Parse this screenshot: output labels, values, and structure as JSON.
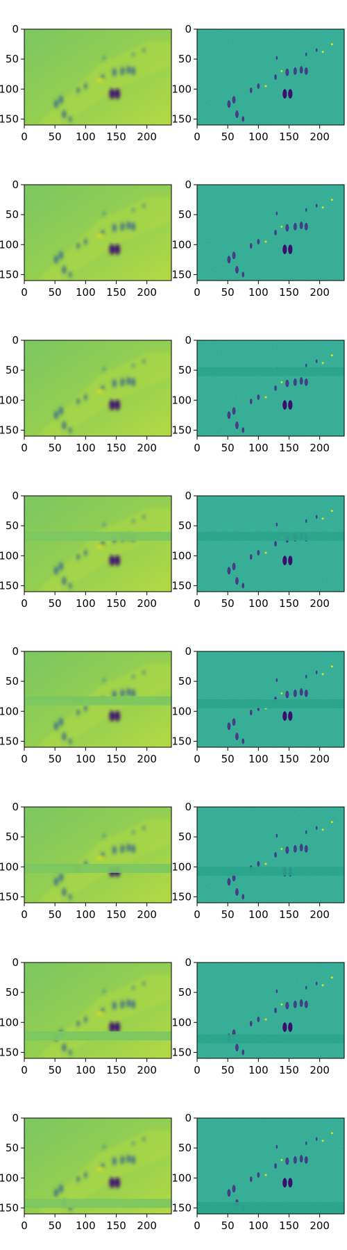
{
  "chart_data": {
    "type": "heatmap",
    "grid": false,
    "layout": "8 rows × 2 columns of image panels (imshow-style)",
    "colormap": "viridis",
    "colors": {
      "left_bg": "#7cc761",
      "left_bg_light": "#b2d944",
      "right_bg": "#2aa58c",
      "dark": "#3b0f70",
      "mid_dark": "#2a5d9a",
      "highlight": "#d8e219"
    },
    "xticks": [
      0,
      50,
      100,
      150,
      200
    ],
    "yticks": [
      0,
      50,
      100,
      150
    ],
    "xlim": [
      0,
      240
    ],
    "ylim": [
      160,
      0
    ],
    "panels": [
      {
        "row": 1,
        "col": 1,
        "kind": "smooth-feature",
        "band": null
      },
      {
        "row": 1,
        "col": 2,
        "kind": "edge-detail",
        "band": null
      },
      {
        "row": 2,
        "col": 1,
        "kind": "smooth-feature",
        "band": null
      },
      {
        "row": 2,
        "col": 2,
        "kind": "edge-detail",
        "band": null
      },
      {
        "row": 3,
        "col": 1,
        "kind": "smooth-feature",
        "band": null
      },
      {
        "row": 3,
        "col": 2,
        "kind": "edge-detail",
        "band": [
          45,
          60
        ]
      },
      {
        "row": 4,
        "col": 1,
        "kind": "smooth-feature",
        "band": [
          60,
          75
        ]
      },
      {
        "row": 4,
        "col": 2,
        "kind": "edge-detail",
        "band": [
          60,
          75
        ]
      },
      {
        "row": 5,
        "col": 1,
        "kind": "smooth-feature",
        "band": [
          75,
          90
        ]
      },
      {
        "row": 5,
        "col": 2,
        "kind": "edge-detail",
        "band": [
          80,
          95
        ]
      },
      {
        "row": 6,
        "col": 1,
        "kind": "smooth-feature",
        "band": [
          95,
          110
        ]
      },
      {
        "row": 6,
        "col": 2,
        "kind": "edge-detail",
        "band": [
          100,
          115
        ]
      },
      {
        "row": 7,
        "col": 1,
        "kind": "smooth-feature",
        "band": [
          115,
          130
        ]
      },
      {
        "row": 7,
        "col": 2,
        "kind": "edge-detail",
        "band": [
          120,
          135
        ]
      },
      {
        "row": 8,
        "col": 1,
        "kind": "smooth-feature",
        "band": [
          135,
          150
        ]
      },
      {
        "row": 8,
        "col": 2,
        "kind": "edge-detail",
        "band": [
          140,
          160
        ]
      }
    ],
    "blobs": [
      {
        "x": 143,
        "y": 108,
        "r": 5,
        "tone": "dark"
      },
      {
        "x": 152,
        "y": 108,
        "r": 5,
        "tone": "dark"
      },
      {
        "x": 160,
        "y": 70,
        "r": 4,
        "tone": "mid"
      },
      {
        "x": 170,
        "y": 68,
        "r": 4,
        "tone": "mid"
      },
      {
        "x": 178,
        "y": 70,
        "r": 4,
        "tone": "mid"
      },
      {
        "x": 147,
        "y": 72,
        "r": 4,
        "tone": "mid"
      },
      {
        "x": 128,
        "y": 80,
        "r": 3,
        "tone": "mid"
      },
      {
        "x": 60,
        "y": 118,
        "r": 4,
        "tone": "mid"
      },
      {
        "x": 52,
        "y": 125,
        "r": 4,
        "tone": "mid"
      },
      {
        "x": 65,
        "y": 142,
        "r": 4,
        "tone": "mid"
      },
      {
        "x": 75,
        "y": 150,
        "r": 3,
        "tone": "mid"
      },
      {
        "x": 88,
        "y": 102,
        "r": 3,
        "tone": "mid"
      },
      {
        "x": 100,
        "y": 95,
        "r": 3,
        "tone": "mid"
      },
      {
        "x": 130,
        "y": 48,
        "r": 2,
        "tone": "mid"
      },
      {
        "x": 178,
        "y": 42,
        "r": 2,
        "tone": "mid"
      },
      {
        "x": 195,
        "y": 35,
        "r": 2,
        "tone": "mid"
      }
    ]
  }
}
